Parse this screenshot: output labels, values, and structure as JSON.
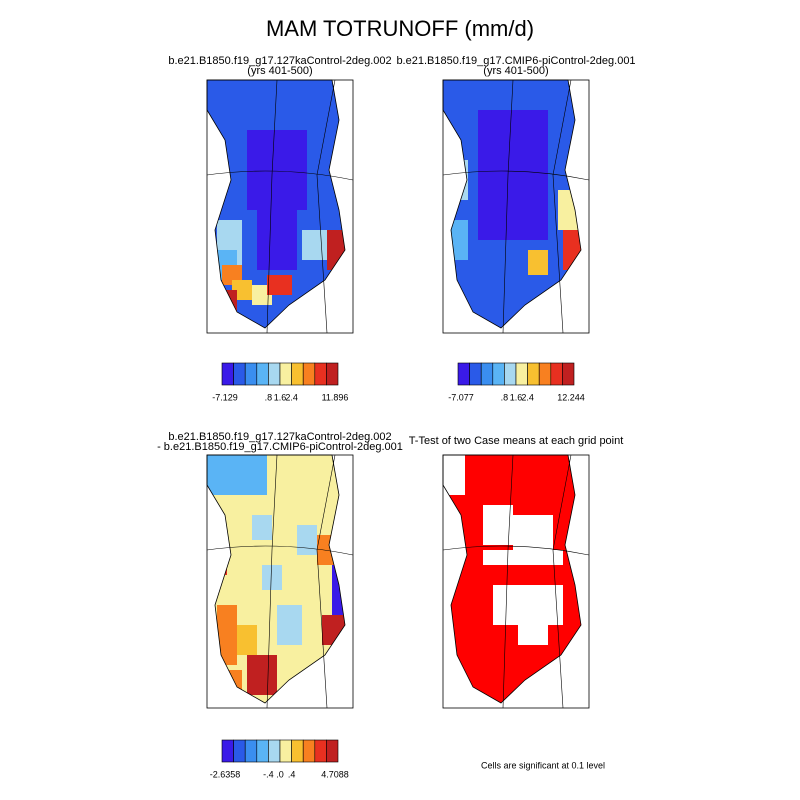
{
  "title": "MAM TOTRUNOFF (mm/d)",
  "panels": [
    {
      "title": "b.e21.B1850.f19_g17.127kaControl-2deg.002",
      "subtitle": "(yrs 401-500)",
      "colorbar_labels": [
        "-7.129",
        ".8",
        "1.6",
        "2.4",
        "11.896"
      ]
    },
    {
      "title": "b.e21.B1850.f19_g17.CMIP6-piControl-2deg.001",
      "subtitle": "(yrs 401-500)",
      "colorbar_labels": [
        "-7.077",
        ".8",
        "1.6",
        "2.4",
        "12.244"
      ]
    },
    {
      "title": "b.e21.B1850.f19_g17.127kaControl-2deg.002",
      "subtitle": "- b.e21.B1850.f19_g17.CMIP6-piControl-2deg.001",
      "colorbar_labels": [
        "-2.6358",
        "-.4",
        ".0",
        ".4",
        "4.7088"
      ]
    },
    {
      "title": "T-Test of two Case means at each grid point",
      "footnote": "Cells are significant at 0.1 level"
    }
  ]
}
